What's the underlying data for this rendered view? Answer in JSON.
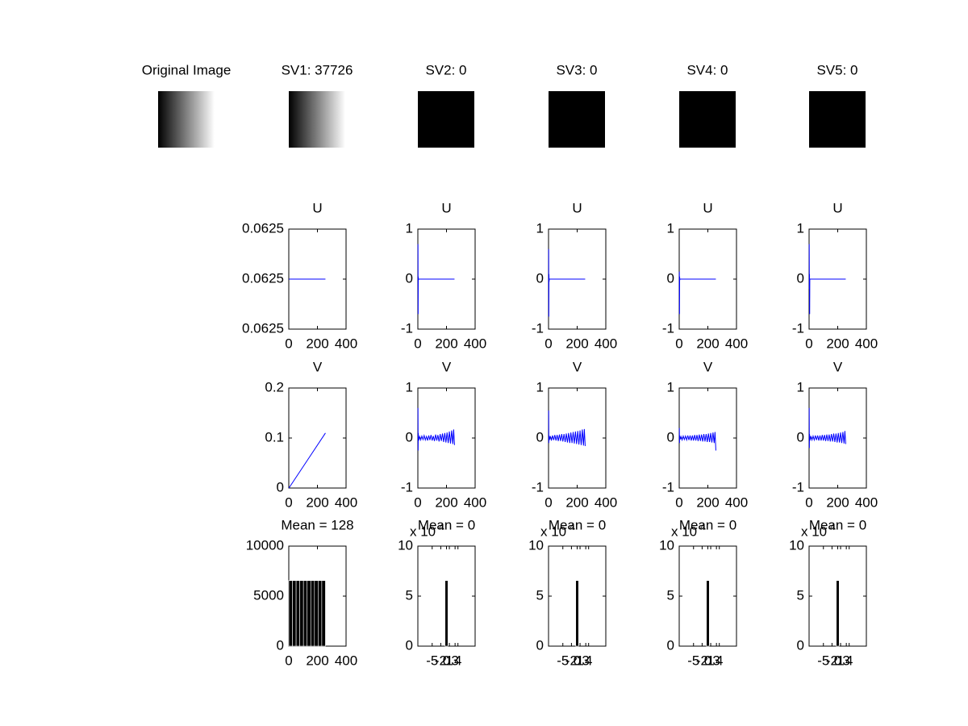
{
  "chart_data": [
    {
      "type": "image",
      "title": "Original Image",
      "fill": "gradient"
    },
    {
      "type": "image",
      "title": "SV1: 37726",
      "fill": "gradient"
    },
    {
      "type": "image",
      "title": "SV2: 0",
      "fill": "black"
    },
    {
      "type": "image",
      "title": "SV3: 0",
      "fill": "black"
    },
    {
      "type": "image",
      "title": "SV4: 0",
      "fill": "black"
    },
    {
      "type": "image",
      "title": "SV5: 0",
      "fill": "black"
    },
    {
      "type": "line",
      "title": "U",
      "color": "#0000ff",
      "x": [
        1,
        256
      ],
      "values": [
        0.0625,
        0.0625
      ],
      "xlim": [
        0,
        400
      ],
      "xticks": [
        0,
        200,
        400
      ],
      "ylim": [
        0.06249,
        0.06251
      ],
      "yticks": [
        {
          "value": 0.06249,
          "label": "0.0625"
        },
        {
          "value": 0.0625,
          "label": "0.0625"
        },
        {
          "value": 0.06251,
          "label": "0.0625"
        }
      ]
    },
    {
      "type": "line",
      "title": "U",
      "color": "#0000ff",
      "x": [
        1,
        2,
        3,
        4,
        5,
        256
      ],
      "values": [
        0.7,
        -0.7,
        0.05,
        -0.02,
        0,
        0
      ],
      "xlim": [
        0,
        400
      ],
      "xticks": [
        0,
        200,
        400
      ],
      "ylim": [
        -1,
        1
      ],
      "yticks": [
        -1,
        0,
        1
      ]
    },
    {
      "type": "line",
      "title": "U",
      "color": "#0000ff",
      "x": [
        1,
        2,
        3,
        4,
        5,
        256
      ],
      "values": [
        0.6,
        -0.75,
        0.1,
        -0.05,
        0,
        0
      ],
      "xlim": [
        0,
        400
      ],
      "xticks": [
        0,
        200,
        400
      ],
      "ylim": [
        -1,
        1
      ],
      "yticks": [
        -1,
        0,
        1
      ]
    },
    {
      "type": "line",
      "title": "U",
      "color": "#0000ff",
      "x": [
        1,
        2,
        3,
        4,
        5,
        256
      ],
      "values": [
        0.15,
        -0.7,
        0.05,
        -0.02,
        0,
        0
      ],
      "xlim": [
        0,
        400
      ],
      "xticks": [
        0,
        200,
        400
      ],
      "ylim": [
        -1,
        1
      ],
      "yticks": [
        -1,
        0,
        1
      ]
    },
    {
      "type": "line",
      "title": "U",
      "color": "#0000ff",
      "x": [
        1,
        2,
        3,
        4,
        5,
        256
      ],
      "values": [
        0.7,
        -0.2,
        0.1,
        -0.7,
        0,
        0
      ],
      "xlim": [
        0,
        400
      ],
      "xticks": [
        0,
        200,
        400
      ],
      "ylim": [
        -1,
        1
      ],
      "yticks": [
        -1,
        0,
        1
      ]
    },
    {
      "type": "line",
      "title": "V",
      "color": "#0000ff",
      "x": [
        1,
        256
      ],
      "values": [
        0,
        0.11
      ],
      "xlim": [
        0,
        400
      ],
      "xticks": [
        0,
        200,
        400
      ],
      "ylim": [
        0,
        0.2
      ],
      "yticks": [
        0,
        0.1,
        0.2
      ]
    },
    {
      "type": "line",
      "title": "V",
      "color": "#0000ff",
      "x": [
        1,
        2,
        3,
        6,
        12,
        20,
        28,
        36,
        44,
        52,
        60,
        68,
        76,
        84,
        92,
        100,
        108,
        116,
        124,
        132,
        140,
        148,
        156,
        164,
        172,
        180,
        188,
        196,
        204,
        212,
        220,
        228,
        236,
        244,
        250,
        256
      ],
      "values": [
        0.6,
        -0.25,
        0.1,
        -0.05,
        0.03,
        -0.04,
        0.04,
        -0.03,
        0.05,
        -0.04,
        0.03,
        -0.05,
        0.05,
        -0.04,
        0.06,
        -0.05,
        0.04,
        -0.06,
        0.07,
        -0.05,
        0.06,
        -0.07,
        0.08,
        -0.06,
        0.09,
        -0.08,
        0.1,
        -0.09,
        0.11,
        -0.1,
        0.13,
        -0.11,
        0.15,
        -0.12,
        0.17,
        -0.14
      ],
      "xlim": [
        0,
        400
      ],
      "xticks": [
        0,
        200,
        400
      ],
      "ylim": [
        -1,
        1
      ],
      "yticks": [
        -1,
        0,
        1
      ]
    },
    {
      "type": "line",
      "title": "V",
      "color": "#0000ff",
      "x": [
        1,
        2,
        3,
        6,
        12,
        20,
        28,
        36,
        44,
        52,
        60,
        68,
        76,
        84,
        92,
        100,
        108,
        116,
        124,
        132,
        140,
        148,
        156,
        164,
        172,
        180,
        188,
        196,
        204,
        212,
        220,
        228,
        236,
        244,
        250,
        256
      ],
      "values": [
        0.55,
        -0.1,
        0.05,
        -0.04,
        0.04,
        -0.05,
        0.05,
        -0.04,
        0.06,
        -0.05,
        0.06,
        -0.06,
        0.07,
        -0.06,
        0.08,
        -0.07,
        0.08,
        -0.08,
        0.09,
        -0.09,
        0.1,
        -0.1,
        0.11,
        -0.1,
        0.12,
        -0.11,
        0.13,
        -0.12,
        0.14,
        -0.13,
        0.15,
        -0.14,
        0.17,
        -0.15,
        0.18,
        -0.16
      ],
      "xlim": [
        0,
        400
      ],
      "xticks": [
        0,
        200,
        400
      ],
      "ylim": [
        -1,
        1
      ],
      "yticks": [
        -1,
        0,
        1
      ]
    },
    {
      "type": "line",
      "title": "V",
      "color": "#0000ff",
      "x": [
        1,
        2,
        3,
        6,
        12,
        20,
        28,
        36,
        44,
        52,
        60,
        68,
        76,
        84,
        92,
        100,
        108,
        116,
        124,
        132,
        140,
        148,
        156,
        164,
        172,
        180,
        188,
        196,
        204,
        212,
        220,
        228,
        236,
        244,
        250,
        256
      ],
      "values": [
        0.2,
        -0.1,
        0.05,
        -0.03,
        0.03,
        -0.04,
        0.04,
        -0.03,
        0.04,
        -0.04,
        0.05,
        -0.04,
        0.05,
        -0.05,
        0.05,
        -0.05,
        0.06,
        -0.05,
        0.06,
        -0.06,
        0.07,
        -0.06,
        0.07,
        -0.07,
        0.08,
        -0.07,
        0.08,
        -0.08,
        0.09,
        -0.08,
        0.1,
        -0.09,
        0.11,
        -0.1,
        0.12,
        -0.25
      ],
      "xlim": [
        0,
        400
      ],
      "xticks": [
        0,
        200,
        400
      ],
      "ylim": [
        -1,
        1
      ],
      "yticks": [
        -1,
        0,
        1
      ]
    },
    {
      "type": "line",
      "title": "V",
      "color": "#0000ff",
      "x": [
        1,
        2,
        3,
        6,
        12,
        20,
        28,
        36,
        44,
        52,
        60,
        68,
        76,
        84,
        92,
        100,
        108,
        116,
        124,
        132,
        140,
        148,
        156,
        164,
        172,
        180,
        188,
        196,
        204,
        212,
        220,
        228,
        236,
        244,
        250,
        256
      ],
      "values": [
        0.6,
        -0.2,
        0.08,
        -0.05,
        0.04,
        -0.04,
        0.04,
        -0.04,
        0.05,
        -0.04,
        0.05,
        -0.05,
        0.05,
        -0.05,
        0.06,
        -0.05,
        0.06,
        -0.06,
        0.07,
        -0.06,
        0.07,
        -0.07,
        0.08,
        -0.07,
        0.09,
        -0.08,
        0.09,
        -0.09,
        0.1,
        -0.09,
        0.11,
        -0.1,
        0.12,
        -0.11,
        0.14,
        -0.12
      ],
      "xlim": [
        0,
        400
      ],
      "xticks": [
        0,
        200,
        400
      ],
      "ylim": [
        -1,
        1
      ],
      "yticks": [
        -1,
        0,
        1
      ]
    },
    {
      "type": "histogram",
      "title": "Mean = 128",
      "color": "#000000",
      "bins": [
        0,
        25.6,
        51.2,
        76.8,
        102.4,
        128,
        153.6,
        179.2,
        204.8,
        230.4,
        256
      ],
      "counts": [
        6554,
        6554,
        6554,
        6554,
        6554,
        6554,
        6554,
        6554,
        6554,
        6554
      ],
      "xlim": [
        0,
        400
      ],
      "xticks": [
        0,
        200,
        400
      ],
      "ylim": [
        0,
        10000
      ],
      "yticks": [
        0,
        5000,
        10000
      ]
    },
    {
      "type": "histogram",
      "title": "Mean = 0",
      "exponent_label": "x 10",
      "exponent": "4",
      "color": "#000000",
      "bins": [
        -0.5,
        0.5
      ],
      "counts": [
        65536
      ],
      "xlim": [
        -10,
        10
      ],
      "xticks": [
        -5,
        -2,
        0,
        1,
        3,
        4
      ],
      "ylim": [
        0,
        100000
      ],
      "yticks": [
        {
          "value": 0,
          "label": "0"
        },
        {
          "value": 50000,
          "label": "5"
        },
        {
          "value": 100000,
          "label": "10"
        }
      ]
    },
    {
      "type": "histogram",
      "title": "Mean = 0",
      "exponent_label": "x 10",
      "exponent": "4",
      "color": "#000000",
      "bins": [
        -0.5,
        0.5
      ],
      "counts": [
        65536
      ],
      "xlim": [
        -10,
        10
      ],
      "xticks": [
        -5,
        -2,
        0,
        1,
        3,
        4
      ],
      "ylim": [
        0,
        100000
      ],
      "yticks": [
        {
          "value": 0,
          "label": "0"
        },
        {
          "value": 50000,
          "label": "5"
        },
        {
          "value": 100000,
          "label": "10"
        }
      ]
    },
    {
      "type": "histogram",
      "title": "Mean = 0",
      "exponent_label": "x 10",
      "exponent": "4",
      "color": "#000000",
      "bins": [
        -0.5,
        0.5
      ],
      "counts": [
        65536
      ],
      "xlim": [
        -10,
        10
      ],
      "xticks": [
        -5,
        -2,
        0,
        1,
        3,
        4
      ],
      "ylim": [
        0,
        100000
      ],
      "yticks": [
        {
          "value": 0,
          "label": "0"
        },
        {
          "value": 50000,
          "label": "5"
        },
        {
          "value": 100000,
          "label": "10"
        }
      ]
    },
    {
      "type": "histogram",
      "title": "Mean = 0",
      "exponent_label": "x 10",
      "exponent": "4",
      "color": "#000000",
      "bins": [
        -0.5,
        0.5
      ],
      "counts": [
        65536
      ],
      "xlim": [
        -10,
        10
      ],
      "xticks": [
        -5,
        -2,
        0,
        1,
        3,
        4
      ],
      "ylim": [
        0,
        100000
      ],
      "yticks": [
        {
          "value": 0,
          "label": "0"
        },
        {
          "value": 50000,
          "label": "5"
        },
        {
          "value": 100000,
          "label": "10"
        }
      ]
    }
  ]
}
